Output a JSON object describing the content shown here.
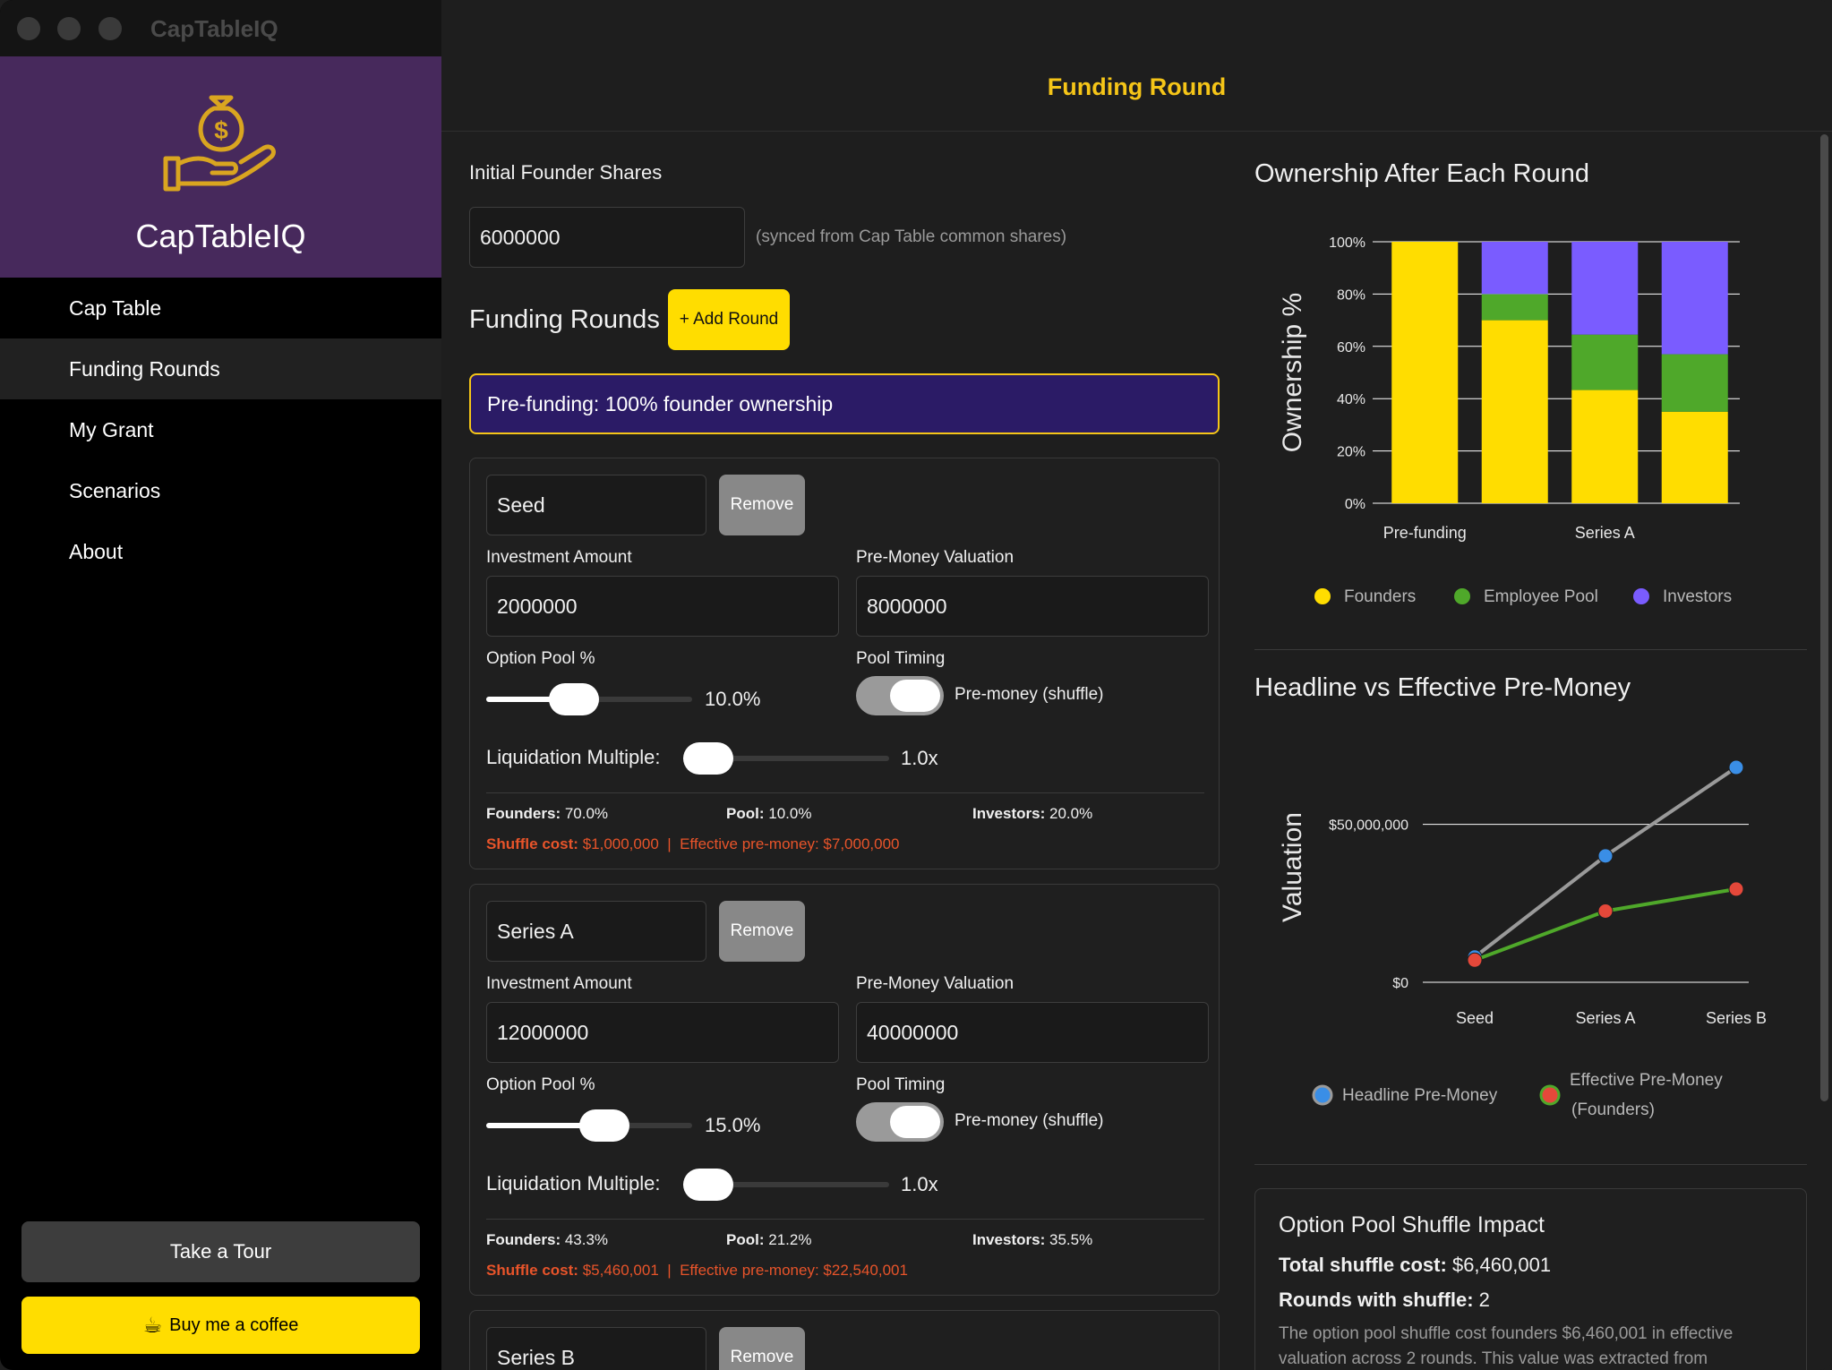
{
  "app": {
    "title": "CapTableIQ",
    "brand_name": "CapTableIQ"
  },
  "sidebar": {
    "items": [
      {
        "label": "Cap Table"
      },
      {
        "label": "Funding Rounds"
      },
      {
        "label": "My Grant"
      },
      {
        "label": "Scenarios"
      },
      {
        "label": "About"
      }
    ],
    "active_index": 1,
    "tour_label": "Take a Tour",
    "coffee_label": "Buy me a coffee"
  },
  "header": {
    "title": "Funding Round"
  },
  "founders": {
    "label": "Initial Founder Shares",
    "value": "6000000",
    "hint": "(synced from Cap Table common shares)"
  },
  "rounds_section": {
    "title": "Funding Rounds",
    "add_label": "+ Add Round",
    "prefunding_text": "Pre-funding: 100% founder ownership"
  },
  "labels": {
    "investment": "Investment Amount",
    "premoney": "Pre-Money Valuation",
    "pool": "Option Pool %",
    "timing": "Pool Timing",
    "liquidation": "Liquidation Multiple:",
    "remove": "Remove",
    "founders": "Founders:",
    "pool_stat": "Pool:",
    "investors": "Investors:",
    "shuffle_cost": "Shuffle cost:",
    "effective": "Effective pre-money:"
  },
  "rounds": [
    {
      "name": "Seed",
      "investment": "2000000",
      "premoney": "8000000",
      "pool_pct": "10.0%",
      "pool_fraction": 0.4,
      "timing": "Pre-money (shuffle)",
      "liq_multiple": "1.0x",
      "liq_fraction": 0.0,
      "founders": "70.0%",
      "pool": "10.0%",
      "investors": "20.0%",
      "shuffle_cost": "$1,000,000",
      "effective_premoney": "$7,000,000"
    },
    {
      "name": "Series A",
      "investment": "12000000",
      "premoney": "40000000",
      "pool_pct": "15.0%",
      "pool_fraction": 0.6,
      "timing": "Pre-money (shuffle)",
      "liq_multiple": "1.0x",
      "liq_fraction": 0.0,
      "founders": "43.3%",
      "pool": "21.2%",
      "investors": "35.5%",
      "shuffle_cost": "$5,460,001",
      "effective_premoney": "$22,540,001"
    },
    {
      "name": "Series B"
    }
  ],
  "ownership_chart": {
    "title": "Ownership After Each Round",
    "chart_data": {
      "type": "bar",
      "stacked": true,
      "categories": [
        "Pre-funding",
        "Seed",
        "Series A",
        "Series B"
      ],
      "visible_tick_labels": [
        "Pre-funding",
        "Series A"
      ],
      "ylabel": "Ownership %",
      "yticks": [
        "0%",
        "20%",
        "40%",
        "60%",
        "80%",
        "100%"
      ],
      "ylim": [
        0,
        100
      ],
      "series": [
        {
          "name": "Founders",
          "color": "#ffdd00",
          "values": [
            100,
            70,
            43.3,
            35
          ]
        },
        {
          "name": "Employee Pool",
          "color": "#4fa82a",
          "values": [
            0,
            10,
            21.2,
            22
          ]
        },
        {
          "name": "Investors",
          "color": "#7a5cff",
          "values": [
            0,
            20,
            35.5,
            43
          ]
        }
      ],
      "legend": "bottom"
    }
  },
  "premoney_chart": {
    "title": "Headline vs Effective Pre-Money",
    "chart_data": {
      "type": "line",
      "categories": [
        "Seed",
        "Series A",
        "Series B"
      ],
      "ylabel": "Valuation",
      "yticks": [
        {
          "label": "$0",
          "value": 0
        },
        {
          "label": "$50,000,000",
          "value": 50000000
        }
      ],
      "ylim": [
        0,
        70000000
      ],
      "series": [
        {
          "name": "Headline Pre-Money",
          "color": "#3a8ee6",
          "line_color": "#9a9a9a",
          "values": [
            8000000,
            40000000,
            68000000
          ]
        },
        {
          "name": "Effective Pre-Money (Founders)",
          "color": "#e5483a",
          "line_color": "#4fa82a",
          "values": [
            7000000,
            22540001,
            29500000
          ]
        }
      ],
      "legend_labels": [
        "Headline Pre-Money",
        "Effective Pre-Money",
        "(Founders)"
      ],
      "legend": "bottom"
    }
  },
  "impact": {
    "title": "Option Pool Shuffle Impact",
    "total_label": "Total shuffle cost:",
    "total_value": "$6,460,001",
    "rounds_label": "Rounds with shuffle:",
    "rounds_value": "2",
    "note": "The option pool shuffle cost founders $6,460,001 in effective valuation across 2 rounds. This value was extracted from"
  }
}
